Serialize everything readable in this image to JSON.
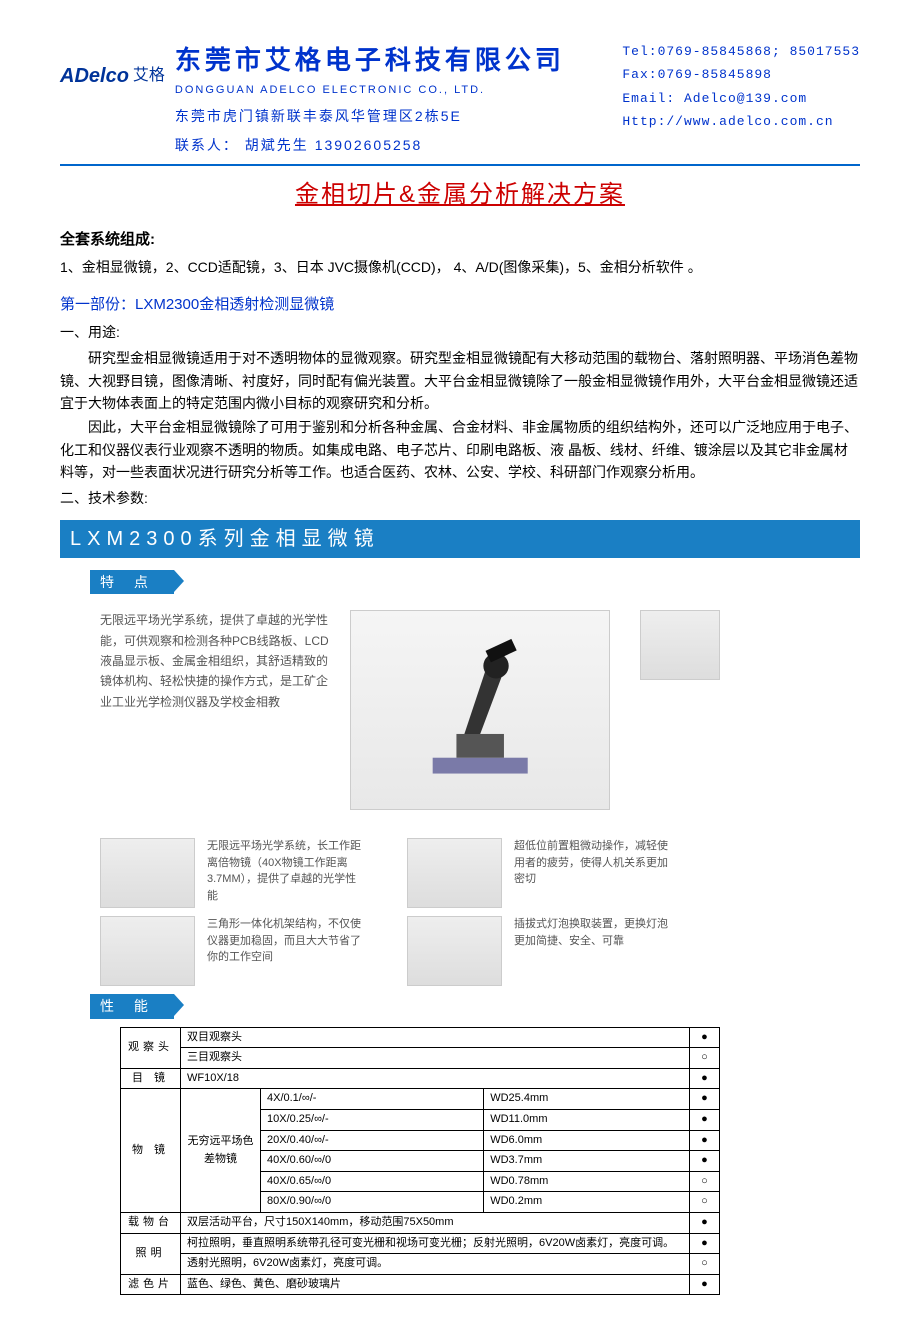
{
  "header": {
    "logo_en": "ADelco",
    "logo_cn": "艾格",
    "company_cn": "东莞市艾格电子科技有限公司",
    "company_en": "DONGGUAN ADELCO ELECTRONIC CO., LTD.",
    "address": "东莞市虎门镇新联丰泰风华管理区2栋5E",
    "contact": "联系人：  胡斌先生  13902605258",
    "tel": "Tel:0769-85845868; 85017553",
    "fax": "Fax:0769-85845898",
    "email": "Email: Adelco@139.com",
    "http": "Http://www.adelco.com.cn"
  },
  "doc_title": "金相切片&金属分析解决方案",
  "system": {
    "head": "全套系统组成:",
    "line": "1、金相显微镜，2、CCD适配镜，3、日本 JVC摄像机(CCD)， 4、A/D(图像采集)，5、金相分析软件 。"
  },
  "part1": {
    "title": "第一部份：LXM2300金相透射检测显微镜",
    "use_head": "一、用途:",
    "p1": "研究型金相显微镜适用于对不透明物体的显微观察。研究型金相显微镜配有大移动范围的载物台、落射照明器、平场消色差物镜、大视野目镜，图像清晰、衬度好，同时配有偏光装置。大平台金相显微镜除了一般金相显微镜作用外，大平台金相显微镜还适宜于大物体表面上的特定范围内微小目标的观察研究和分析。",
    "p2": "因此，大平台金相显微镜除了可用于鉴别和分析各种金属、合金材料、非金属物质的组织结构外，还可以广泛地应用于电子、化工和仪器仪表行业观察不透明的物质。如集成电路、电子芯片、印刷电路板、液 晶板、线材、纤维、镀涂层以及其它非金属材料等，对一些表面状况进行研究分析等工作。也适合医药、农林、公安、学校、科研部门作观察分析用。",
    "spec_head": "二、技术参数:"
  },
  "series_bar": "LXM2300系列金相显微镜",
  "tag_feature": "特 点",
  "tag_perf": "性 能",
  "feature_main": "无限远平场光学系统，提供了卓越的光学性能，可供观察和检测各种PCB线路板、LCD液晶显示板、金属金相组织，其舒适精致的镜体机构、轻松快捷的操作方式，是工矿企业工业光学检测仪器及学校金相教",
  "feat": {
    "f1": "无限远平场光学系统，长工作距离倍物镜（40X物镜工作距离3.7MM），提供了卓越的光学性能",
    "f2": "超低位前置粗微动操作，减轻使用者的疲劳，使得人机关系更加密切",
    "f3": "三角形一体化机架结构，不仅使仪器更加稳固，而且大大节省了你的工作空间",
    "f4": "插拔式灯泡换取装置，更换灯泡更加简捷、安全、可靠"
  },
  "spec": {
    "rows": [
      {
        "label": "观察头",
        "c1": "双目观察头",
        "c2": "",
        "m1": "●",
        "m2": ""
      },
      {
        "label": "",
        "c1": "三目观察头",
        "c2": "",
        "m1": "",
        "m2": "○"
      },
      {
        "label": "目 镜",
        "c1": "WF10X/18",
        "c2": "",
        "m1": "●",
        "m2": ""
      },
      {
        "label": "物 镜",
        "sub": "无穷远平场色差物镜",
        "c1": "4X/0.1/∞/-",
        "c2": "WD25.4mm",
        "m1": "●",
        "m2": ""
      },
      {
        "label": "",
        "c1": "10X/0.25/∞/-",
        "c2": "WD11.0mm",
        "m1": "●",
        "m2": ""
      },
      {
        "label": "",
        "c1": "20X/0.40/∞/-",
        "c2": "WD6.0mm",
        "m1": "●",
        "m2": ""
      },
      {
        "label": "",
        "c1": "40X/0.60/∞/0",
        "c2": "WD3.7mm",
        "m1": "●",
        "m2": ""
      },
      {
        "label": "",
        "c1": "40X/0.65/∞/0",
        "c2": "WD0.78mm",
        "m1": "",
        "m2": "○"
      },
      {
        "label": "",
        "c1": "80X/0.90/∞/0",
        "c2": "WD0.2mm",
        "m1": "",
        "m2": "○"
      },
      {
        "label": "载物台",
        "c1": "双层活动平台，尺寸150X140mm，移动范围75X50mm",
        "c2": "",
        "m1": "●",
        "m2": ""
      },
      {
        "label": "照明",
        "c1": "柯拉照明，垂直照明系统带孔径可变光栅和视场可变光栅；反射光照明，6V20W卤素灯，亮度可调。",
        "c2": "",
        "m1": "●",
        "m2": ""
      },
      {
        "label": "",
        "c1": "透射光照明，6V20W卤素灯，亮度可调。",
        "c2": "",
        "m1": "",
        "m2": "○"
      },
      {
        "label": "滤色片",
        "c1": "蓝色、绿色、黄色、磨砂玻璃片",
        "c2": "",
        "m1": "●",
        "m2": ""
      }
    ]
  },
  "colors": {
    "brand": "#0033cc",
    "title_red": "#cc0000",
    "bar_blue": "#1a7fc4",
    "gray_text": "#555555"
  }
}
